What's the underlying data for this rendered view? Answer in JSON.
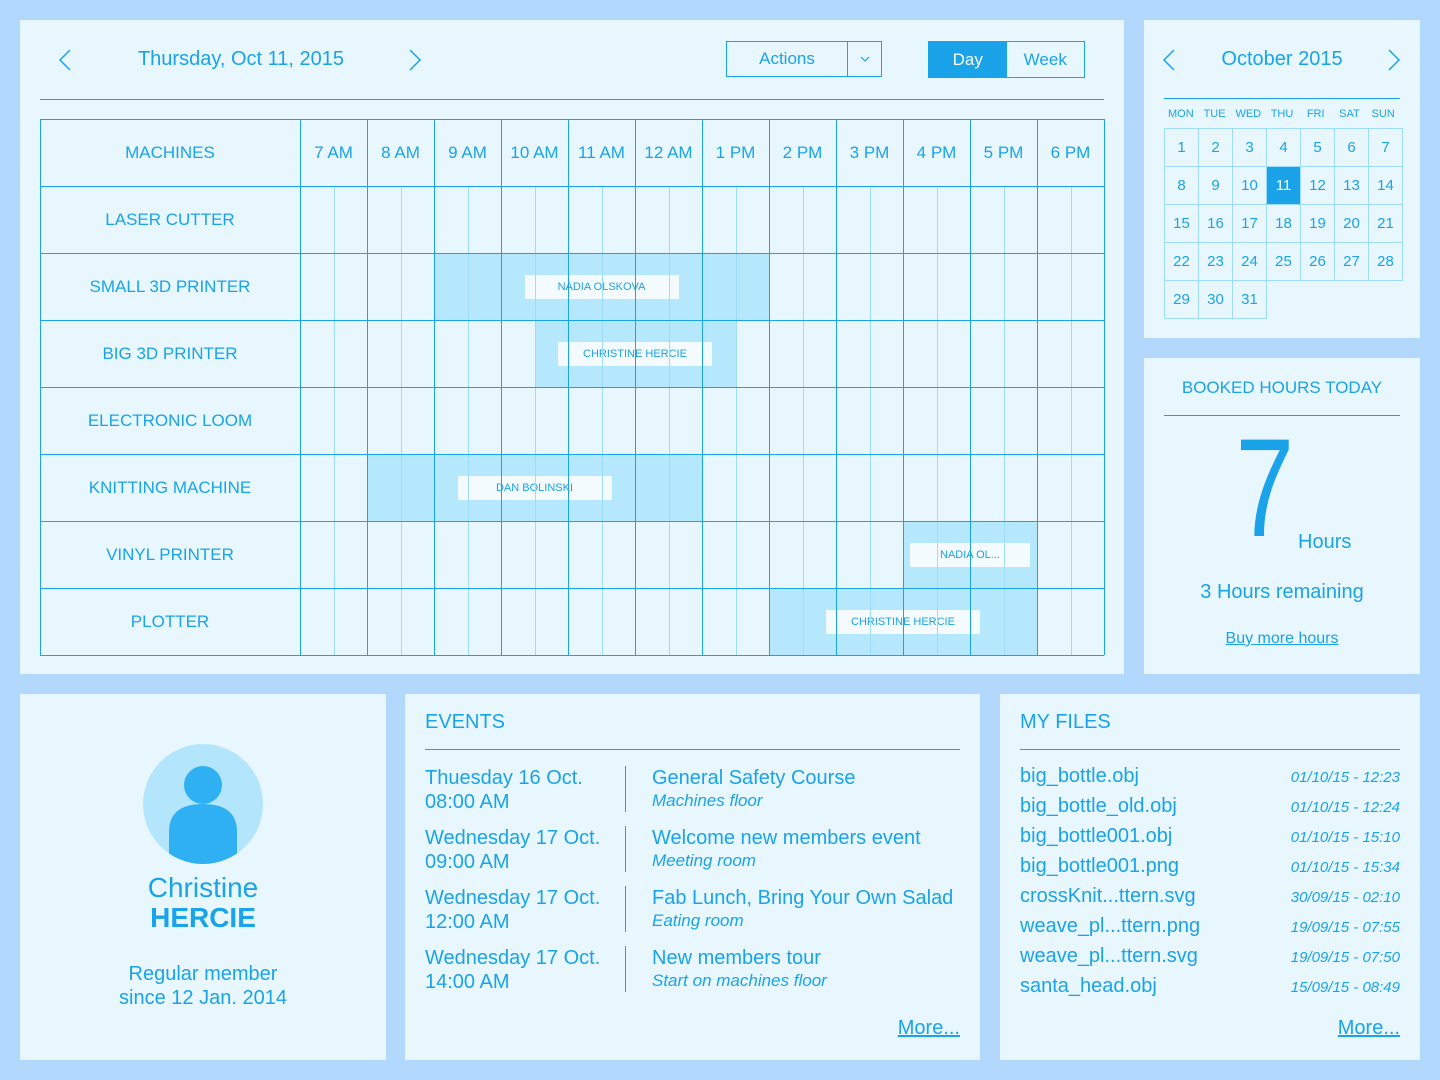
{
  "scheduler": {
    "date": "Thursday, Oct 11, 2015",
    "actions_label": "Actions",
    "view_day": "Day",
    "view_week": "Week",
    "active_view": "Day",
    "corner_label": "MACHINES",
    "hours": [
      "7 AM",
      "8 AM",
      "9 AM",
      "10 AM",
      "11 AM",
      "12 AM",
      "1 PM",
      "2 PM",
      "3 PM",
      "4 PM",
      "5 PM",
      "6 PM"
    ],
    "machines": [
      "LASER CUTTER",
      "SMALL 3D PRINTER",
      "BIG 3D PRINTER",
      "ELECTRONIC LOOM",
      "KNITTING MACHINE",
      "VINYL PRINTER",
      "PLOTTER"
    ],
    "bookings": [
      {
        "machine": "SMALL 3D PRINTER",
        "start": "9:00",
        "end": "14:00",
        "member": "NADIA OLSKOVA"
      },
      {
        "machine": "BIG 3D PRINTER",
        "start": "10:30",
        "end": "13:30",
        "member": "CHRISTINE HERCIE"
      },
      {
        "machine": "KNITTING MACHINE",
        "start": "8:00",
        "end": "13:00",
        "member": "DAN BOLINSKI"
      },
      {
        "machine": "VINYL PRINTER",
        "start": "16:00",
        "end": "18:00",
        "member": "NADIA OL..."
      },
      {
        "machine": "PLOTTER",
        "start": "14:00",
        "end": "18:00",
        "member": "CHRISTINE HERCIE"
      }
    ]
  },
  "calendar": {
    "title": "October 2015",
    "weekdays": [
      "MON",
      "TUE",
      "WED",
      "THU",
      "FRI",
      "SAT",
      "SUN"
    ],
    "days": [
      1,
      2,
      3,
      4,
      5,
      6,
      7,
      8,
      9,
      10,
      11,
      12,
      13,
      14,
      15,
      16,
      17,
      18,
      19,
      20,
      21,
      22,
      23,
      24,
      25,
      26,
      27,
      28,
      29,
      30,
      31
    ],
    "selected_day": 11
  },
  "booked": {
    "title": "BOOKED HOURS TODAY",
    "number": "7",
    "unit": "Hours",
    "remaining": "3 Hours remaining",
    "buy_link": "Buy more hours"
  },
  "profile": {
    "first_name": "Christine",
    "last_name": "HERCIE",
    "member_type": "Regular member",
    "member_since": "since 12 Jan. 2014"
  },
  "events": {
    "title": "EVENTS",
    "items": [
      {
        "day": "Thuesday 16 Oct.",
        "time": "08:00 AM",
        "title": "General Safety Course",
        "location": "Machines floor"
      },
      {
        "day": "Wednesday 17 Oct.",
        "time": "09:00 AM",
        "title": "Welcome new members event",
        "location": "Meeting room"
      },
      {
        "day": "Wednesday 17 Oct.",
        "time": "12:00 AM",
        "title": "Fab Lunch, Bring Your Own Salad",
        "location": "Eating room"
      },
      {
        "day": "Wednesday 17 Oct.",
        "time": "14:00 AM",
        "title": "New members tour",
        "location": "Start on machines floor"
      }
    ],
    "more": "More..."
  },
  "files": {
    "title": "MY FILES",
    "items": [
      {
        "name": "big_bottle.obj",
        "date": "01/10/15 - 12:23"
      },
      {
        "name": "big_bottle_old.obj",
        "date": "01/10/15 - 12:24"
      },
      {
        "name": "big_bottle001.obj",
        "date": "01/10/15 - 15:10"
      },
      {
        "name": "big_bottle001.png",
        "date": "01/10/15 - 15:34"
      },
      {
        "name": "crossKnit...ttern.svg",
        "date": "30/09/15 - 02:10"
      },
      {
        "name": "weave_pl...ttern.png",
        "date": "19/09/15 - 07:55"
      },
      {
        "name": "weave_pl...ttern.svg",
        "date": "19/09/15 - 07:50"
      },
      {
        "name": "santa_head.obj",
        "date": "15/09/15 - 08:49"
      }
    ],
    "more": "More..."
  },
  "colors": {
    "accent": "#1aa3e8",
    "page_background": "#b3d8fd",
    "panel_background": "#e8f7fe",
    "booking_fill": "#bde8fb"
  },
  "icons": {
    "prev": "chevron-left-icon",
    "next": "chevron-right-icon",
    "dropdown": "chevron-down-icon",
    "avatar": "user-avatar-icon"
  }
}
